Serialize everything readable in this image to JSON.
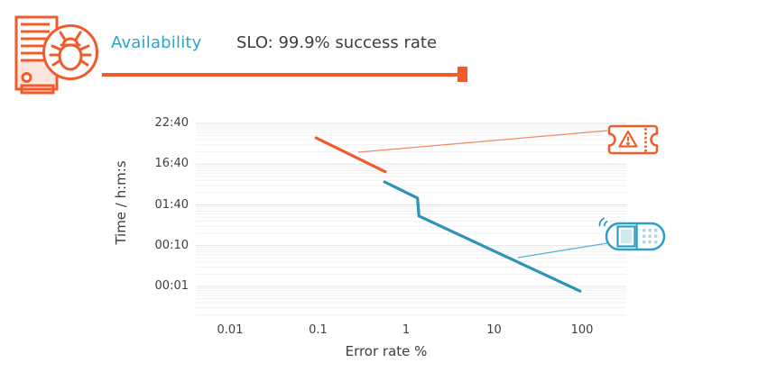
{
  "header": {
    "availability_label": "Availability",
    "slo_label": "SLO: 99.9% success rate"
  },
  "slider": {
    "value_label": "99.9%"
  },
  "icons": [
    {
      "name": "server-bug-icon",
      "meaning": "server with bug (failing service)"
    },
    {
      "name": "ticket-warning-icon",
      "meaning": "ticket alert (slow burn)"
    },
    {
      "name": "pager-icon",
      "meaning": "pager alert (fast burn)"
    }
  ],
  "colors": {
    "accent_orange": "#f05b2b",
    "accent_orange_light": "#f28a66",
    "accent_teal": "#2d93b8",
    "accent_teal_light": "#58b4d1",
    "title_teal": "#2aa5c9",
    "text_dark": "#3d3d3d",
    "grid_major": "#e2e2e2",
    "grid_minor": "#f1f1f1"
  },
  "chart_data": {
    "type": "line",
    "title": "",
    "xlabel": "Error rate %",
    "ylabel": "Time / h:m:s",
    "x_scale": "log",
    "y_scale": "log",
    "grid": "horizontal-only",
    "legend": "none",
    "x_ticks": [
      0.01,
      0.1,
      1,
      10,
      100
    ],
    "x_tick_labels": [
      "0.01",
      "0.1",
      "1",
      "10",
      "100"
    ],
    "y_ticks_seconds": [
      60,
      600,
      6000,
      60000,
      600000
    ],
    "y_tick_labels": [
      "00:01",
      "00:10",
      "01:40",
      "16:40",
      "22:40"
    ],
    "series": [
      {
        "name": "ticket-line",
        "color": "#f05b2b",
        "points": [
          {
            "x": 0.095,
            "t": 265000
          },
          {
            "x": 0.58,
            "t": 39000
          }
        ]
      },
      {
        "name": "page-line",
        "color": "#2d93b8",
        "points": [
          {
            "x": 0.57,
            "t": 22000
          },
          {
            "x": 1.35,
            "t": 8800
          },
          {
            "x": 1.4,
            "t": 3200
          },
          {
            "x": 95,
            "t": 46
          }
        ]
      }
    ]
  }
}
